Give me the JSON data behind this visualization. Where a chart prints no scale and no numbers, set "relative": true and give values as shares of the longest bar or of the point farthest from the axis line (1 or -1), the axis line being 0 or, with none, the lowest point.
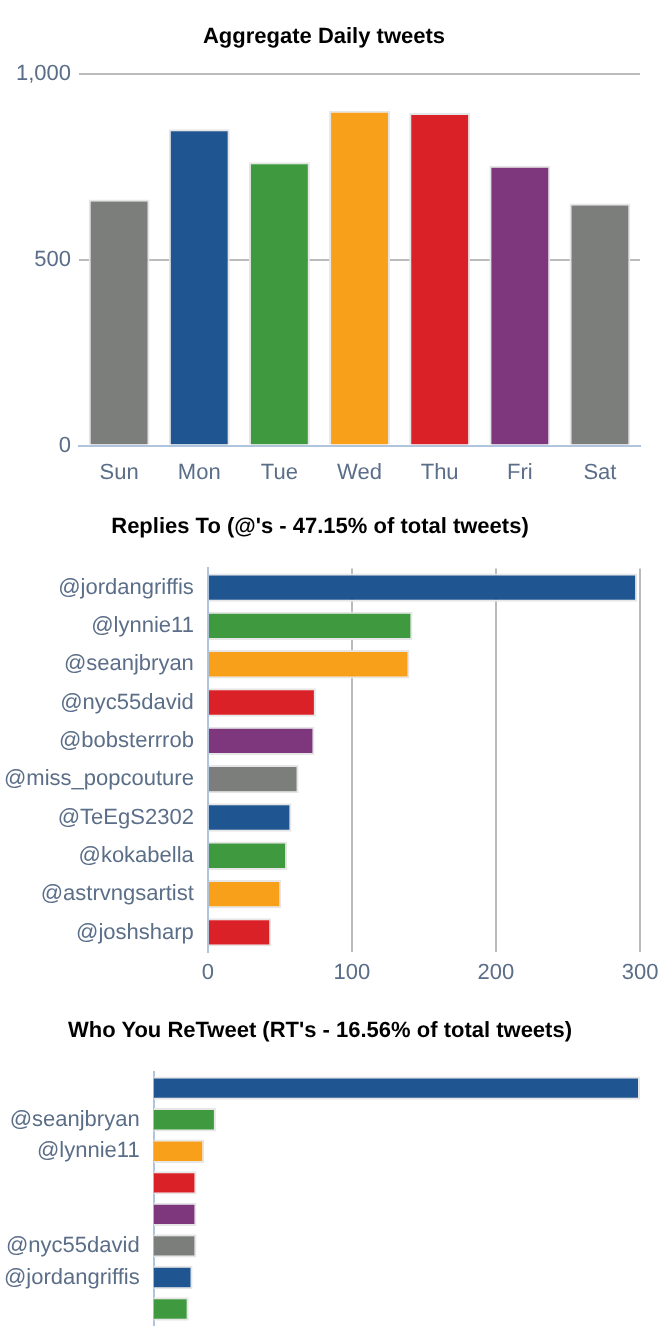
{
  "chart_data": [
    {
      "type": "bar",
      "title": "Aggregate Daily tweets",
      "categories": [
        "Sun",
        "Mon",
        "Tue",
        "Wed",
        "Thu",
        "Fri",
        "Sat"
      ],
      "values": [
        663,
        852,
        763,
        902,
        896,
        754,
        652
      ],
      "colors": [
        "#7c7e7c",
        "#1f5591",
        "#3f9a3f",
        "#f8a01a",
        "#db2128",
        "#7e367d",
        "#7c7e7c"
      ],
      "ylim": [
        0,
        1000
      ],
      "yticks": [
        0,
        500,
        {
          "value": 1000,
          "label": "1,000"
        }
      ],
      "grid": "y"
    },
    {
      "type": "bar",
      "orientation": "horizontal",
      "title": "Replies To (@'s - 47.15% of total tweets)",
      "categories": [
        "@jordangriffis",
        "@lynnie11",
        "@seanjbryan",
        "@nyc55david",
        "@bobsterrrob",
        "@miss_popcouture",
        "@TeEgS2302",
        "@kokabella",
        "@astrvngsartist",
        "@joshsharp"
      ],
      "values": [
        298,
        142,
        140,
        75,
        74,
        63,
        58,
        55,
        51,
        44
      ],
      "colors": [
        "#1f5591",
        "#3f9a3f",
        "#f8a01a",
        "#db2128",
        "#7e367d",
        "#7c7e7c",
        "#1f5591",
        "#3f9a3f",
        "#f8a01a",
        "#db2128"
      ],
      "xlim": [
        0,
        300
      ],
      "xticks": [
        0,
        100,
        200,
        300
      ],
      "grid": "x"
    },
    {
      "type": "bar",
      "orientation": "horizontal",
      "relative": true,
      "title": "Who You ReTweet (RT's - 16.56% of total tweets)",
      "categories": [
        null,
        "@seanjbryan",
        "@lynnie11",
        null,
        null,
        "@nyc55david",
        "@jordangriffis",
        null
      ],
      "values": [
        1,
        0.128,
        0.104,
        0.088,
        0.088,
        0.088,
        0.08,
        0.072
      ],
      "colors": [
        "#1f5591",
        "#3f9a3f",
        "#f8a01a",
        "#db2128",
        "#7e367d",
        "#7c7e7c",
        "#1f5591",
        "#3f9a3f"
      ]
    }
  ]
}
